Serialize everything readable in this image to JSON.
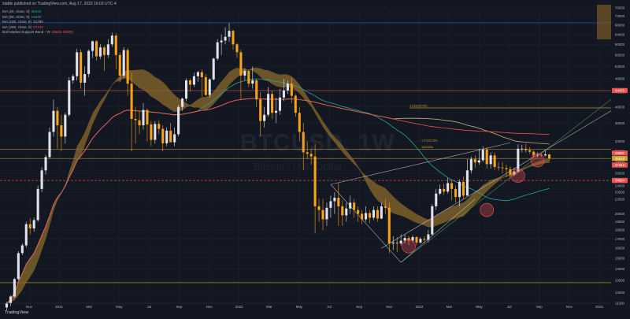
{
  "header": "stable published on TradingView.com, Aug 17, 2023 16:03 UTC-4",
  "brand": "TradingView",
  "watermark": {
    "symbol": "BTCUSD, 1W",
    "name": "Bitcoin / U.S. Dollar"
  },
  "legend": [
    {
      "label": "MA (20, close, 0)",
      "value": "28633",
      "color": "#26a69a"
    },
    {
      "label": "MA (50, close, 0)",
      "value": "21839",
      "color": "#26a69a"
    },
    {
      "label": "MA (100, close, 0)",
      "value": "31290",
      "color": "#c9b37e"
    },
    {
      "label": "MA (200, close, 0)",
      "value": "27443",
      "color": "#ef5350"
    },
    {
      "label": "Bull Market Support Band - W",
      "value": "28633  28000",
      "color": "#ef5350"
    }
  ],
  "colors": {
    "background": "#131722",
    "candle_up": "#e0e3eb",
    "candle_down": "#f7a21b",
    "band": "#8a6a2a",
    "ma20": "#26a69a",
    "ma100": "#c9b37e",
    "ma200": "#ef5350",
    "level_blue": "#2962ff",
    "level_gold": "#c9a227",
    "level_red": "#ef5350",
    "trend_green": "#4caf50",
    "trend_white": "#d1d4dc"
  },
  "chart_data": {
    "type": "candlestick",
    "y_scale": "log",
    "ylim": [
      11200,
      76000
    ],
    "y_ticks": [
      "76000",
      "72000",
      "68000",
      "64000",
      "60000",
      "56000",
      "52000",
      "48000",
      "44000",
      "40000",
      "36000",
      "32000",
      "30000",
      "28000",
      "26000",
      "24000",
      "23000",
      "22000",
      "20000",
      "19000",
      "18000",
      "17000",
      "16000",
      "15000",
      "14000",
      "13000",
      "12000",
      "11200"
    ],
    "x_ticks": [
      "Nov",
      "2021",
      "Mar",
      "May",
      "Jul",
      "Sep",
      "Nov",
      "2022",
      "Mar",
      "May",
      "Jul",
      "Sep",
      "Nov",
      "2023",
      "Mar",
      "May",
      "Jul",
      "Sep",
      "Nov",
      "2024"
    ],
    "price_labels": [
      {
        "text": "44470",
        "value": 44470,
        "color": "#ef5350"
      },
      {
        "text": "29661",
        "value": 29661,
        "color": "#ef5350"
      },
      {
        "text": "28633",
        "value": 28633,
        "color": "#c9a227"
      },
      {
        "text": "27443",
        "value": 27443,
        "color": "#ef5350"
      },
      {
        "text": "24824",
        "value": 24824,
        "color": "#ef5350"
      }
    ],
    "fib_labels": [
      {
        "text": "1.618(39735)",
        "value": 39735
      },
      {
        "text": "1.27(31730)",
        "value": 31730
      },
      {
        "text": "1(30380)",
        "value": 30380
      }
    ],
    "levels": [
      {
        "value": 69000,
        "color": "#2962ff"
      },
      {
        "value": 44470,
        "color": "#ef5350"
      },
      {
        "value": 39735,
        "color": "#c9a227"
      },
      {
        "value": 30380,
        "color": "#c9a227"
      },
      {
        "value": 28633,
        "color": "#c9a227"
      },
      {
        "value": 24824,
        "color": "#ef5350"
      },
      {
        "value": 12800,
        "color": "#c9a227"
      }
    ],
    "candles": [
      [
        10900,
        11200,
        10700,
        11300
      ],
      [
        11200,
        11700,
        11000,
        11800
      ],
      [
        11700,
        13100,
        11600,
        13200
      ],
      [
        13100,
        15500,
        13000,
        15700
      ],
      [
        15500,
        16300,
        15300,
        16500
      ],
      [
        16300,
        18700,
        16100,
        19000
      ],
      [
        18700,
        18200,
        17500,
        19400
      ],
      [
        18200,
        19200,
        17800,
        19500
      ],
      [
        19200,
        23500,
        19000,
        24000
      ],
      [
        23500,
        26500,
        23000,
        27000
      ],
      [
        26500,
        28900,
        25800,
        29300
      ],
      [
        28900,
        34000,
        28600,
        35000
      ],
      [
        34000,
        39000,
        33000,
        41900
      ],
      [
        39000,
        35500,
        30500,
        40000
      ],
      [
        35500,
        33000,
        30000,
        38000
      ],
      [
        33000,
        38000,
        31500,
        38500
      ],
      [
        38000,
        47500,
        37500,
        48500
      ],
      [
        47500,
        48800,
        46500,
        49500
      ],
      [
        48800,
        57000,
        47500,
        58300
      ],
      [
        57000,
        46800,
        45000,
        58000
      ],
      [
        46800,
        49500,
        43000,
        52000
      ],
      [
        49500,
        57500,
        48500,
        58000
      ],
      [
        57500,
        61200,
        55000,
        61500
      ],
      [
        61200,
        55500,
        54000,
        61700
      ],
      [
        55500,
        58800,
        54500,
        60000
      ],
      [
        58800,
        56000,
        50500,
        59500
      ],
      [
        56000,
        60000,
        55000,
        62000
      ],
      [
        60000,
        63500,
        59000,
        64800
      ],
      [
        63500,
        56000,
        51000,
        64500
      ],
      [
        56000,
        49000,
        47000,
        57000
      ],
      [
        49000,
        57800,
        48000,
        59000
      ],
      [
        57800,
        46500,
        43000,
        58500
      ],
      [
        46500,
        37000,
        30000,
        50000
      ],
      [
        37000,
        36700,
        31500,
        40000
      ],
      [
        36700,
        35500,
        33500,
        39000
      ],
      [
        35500,
        39200,
        34500,
        41000
      ],
      [
        39200,
        35700,
        32000,
        39500
      ],
      [
        35700,
        32300,
        31000,
        36500
      ],
      [
        32300,
        35800,
        31500,
        36500
      ],
      [
        35800,
        34700,
        33500,
        36700
      ],
      [
        34700,
        31600,
        30000,
        35500
      ],
      [
        31600,
        34300,
        31000,
        35000
      ],
      [
        34300,
        31800,
        32000,
        36000
      ],
      [
        31800,
        33500,
        31000,
        35000
      ],
      [
        33500,
        40000,
        33000,
        40500
      ],
      [
        40000,
        42200,
        39000,
        42500
      ],
      [
        42200,
        47500,
        41500,
        48100
      ],
      [
        47500,
        46200,
        44200,
        48100
      ],
      [
        46200,
        48800,
        45500,
        50000
      ],
      [
        48800,
        50100,
        47000,
        50500
      ],
      [
        50100,
        48500,
        42800,
        51000
      ],
      [
        48500,
        43200,
        43000,
        49500
      ],
      [
        43200,
        47800,
        42500,
        48200
      ],
      [
        47800,
        54700,
        47500,
        55000
      ],
      [
        54700,
        60800,
        54000,
        62000
      ],
      [
        60800,
        61500,
        56000,
        64000
      ],
      [
        61500,
        63000,
        60000,
        67000
      ],
      [
        63000,
        65500,
        61000,
        69000
      ],
      [
        65500,
        60000,
        58000,
        66000
      ],
      [
        60000,
        57000,
        55000,
        60500
      ],
      [
        57000,
        49000,
        42000,
        58000
      ],
      [
        49000,
        50500,
        47500,
        51500
      ],
      [
        50500,
        46500,
        45500,
        51000
      ],
      [
        46500,
        47500,
        45000,
        52000
      ],
      [
        47500,
        42000,
        40000,
        48000
      ],
      [
        42000,
        36500,
        33000,
        44000
      ],
      [
        36500,
        38000,
        35000,
        40000
      ],
      [
        38000,
        43500,
        37500,
        45500
      ],
      [
        43500,
        38500,
        37000,
        44500
      ],
      [
        38500,
        39000,
        36000,
        42500
      ],
      [
        39000,
        42500,
        38000,
        45000
      ],
      [
        42500,
        44500,
        41500,
        48000
      ],
      [
        44500,
        46500,
        43500,
        47500
      ],
      [
        46500,
        43000,
        41000,
        48200
      ],
      [
        43000,
        38500,
        37500,
        43500
      ],
      [
        38500,
        34000,
        32000,
        40000
      ],
      [
        34000,
        29800,
        26500,
        36000
      ],
      [
        29800,
        29500,
        28500,
        32000
      ],
      [
        29500,
        29000,
        27500,
        30500
      ],
      [
        29000,
        21000,
        17600,
        31500
      ],
      [
        21000,
        20500,
        19000,
        22000
      ],
      [
        20500,
        19300,
        18000,
        22000
      ],
      [
        19300,
        20800,
        18500,
        21500
      ],
      [
        20800,
        21700,
        19500,
        22500
      ],
      [
        21700,
        22200,
        20000,
        23000
      ],
      [
        22200,
        21000,
        18500,
        24500
      ],
      [
        21000,
        19800,
        18500,
        21800
      ],
      [
        19800,
        20700,
        19000,
        21500
      ],
      [
        20700,
        21500,
        20000,
        22500
      ],
      [
        21500,
        20500,
        19500,
        22000
      ],
      [
        20500,
        20000,
        19000,
        21000
      ],
      [
        20000,
        19300,
        18700,
        20500
      ],
      [
        19300,
        20100,
        19000,
        21000
      ],
      [
        20100,
        19500,
        18800,
        20500
      ],
      [
        19500,
        20500,
        19200,
        21000
      ],
      [
        20500,
        19400,
        19000,
        21000
      ],
      [
        19400,
        21000,
        19300,
        21500
      ],
      [
        21000,
        20800,
        20000,
        22000
      ],
      [
        20800,
        16500,
        15500,
        21500
      ],
      [
        16500,
        16600,
        15800,
        17300
      ],
      [
        16600,
        16500,
        15600,
        17200
      ],
      [
        16500,
        16800,
        16300,
        17500
      ],
      [
        16800,
        17100,
        16500,
        17500
      ],
      [
        17100,
        16800,
        16300,
        17300
      ],
      [
        16800,
        17200,
        16600,
        17400
      ],
      [
        17200,
        16600,
        16300,
        17300
      ],
      [
        16600,
        17000,
        16500,
        17200
      ],
      [
        17000,
        16900,
        16500,
        17300
      ],
      [
        16900,
        17500,
        16600,
        18000
      ],
      [
        17500,
        21000,
        17400,
        21300
      ],
      [
        21000,
        22800,
        20500,
        23500
      ],
      [
        22800,
        23500,
        22500,
        24200
      ],
      [
        23500,
        23100,
        22600,
        24300
      ],
      [
        23100,
        24400,
        22800,
        25200
      ],
      [
        24400,
        23500,
        21800,
        25000
      ],
      [
        23500,
        22300,
        21500,
        24000
      ],
      [
        22300,
        24600,
        21000,
        25000
      ],
      [
        24600,
        22500,
        22000,
        25500
      ],
      [
        22500,
        26500,
        22500,
        28500
      ],
      [
        26500,
        28500,
        26000,
        29000
      ],
      [
        28500,
        27900,
        27000,
        29200
      ],
      [
        27900,
        28300,
        27500,
        30500
      ],
      [
        28300,
        30300,
        28000,
        31000
      ],
      [
        30300,
        27600,
        26800,
        30800
      ],
      [
        27600,
        29200,
        26800,
        29800
      ],
      [
        29200,
        27100,
        26500,
        29800
      ],
      [
        27100,
        27000,
        26500,
        28000
      ],
      [
        27000,
        26900,
        26000,
        28000
      ],
      [
        26900,
        26700,
        25300,
        27500
      ],
      [
        26700,
        25800,
        25000,
        27200
      ],
      [
        25800,
        26300,
        25500,
        27000
      ],
      [
        26300,
        30500,
        26200,
        31400
      ],
      [
        30500,
        30500,
        29800,
        31300
      ],
      [
        30500,
        30200,
        29700,
        31500
      ],
      [
        30200,
        29900,
        29500,
        30800
      ],
      [
        29900,
        29200,
        28800,
        30200
      ],
      [
        29200,
        29300,
        28900,
        29800
      ],
      [
        29300,
        29200,
        28900,
        29600
      ],
      [
        29200,
        29400,
        29000,
        30200
      ],
      [
        29400,
        28600,
        28200,
        29500
      ]
    ]
  }
}
